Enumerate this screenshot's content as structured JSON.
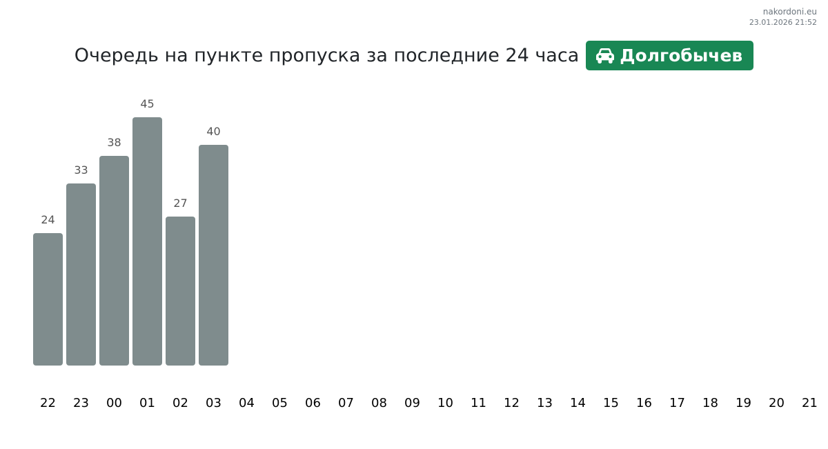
{
  "header": {
    "site": "nakordoni.eu",
    "timestamp": "23.01.2026 21:52",
    "title": "Очередь на пункте пропуска за последние 24 часа",
    "checkpoint": "Долгобычев",
    "badge_icon": "car-icon"
  },
  "colors": {
    "bar": "#7f8c8d",
    "badge": "#198754",
    "value_label": "#555555",
    "tick_label": "#000000"
  },
  "chart_data": {
    "type": "bar",
    "title": "Очередь на пункте пропуска за последние 24 часа",
    "xlabel": "",
    "ylabel": "",
    "categories": [
      "22",
      "23",
      "00",
      "01",
      "02",
      "03",
      "04",
      "05",
      "06",
      "07",
      "08",
      "09",
      "10",
      "11",
      "12",
      "13",
      "14",
      "15",
      "16",
      "17",
      "18",
      "19",
      "20",
      "21"
    ],
    "values": [
      24,
      33,
      38,
      45,
      27,
      40,
      null,
      null,
      null,
      null,
      null,
      null,
      null,
      null,
      null,
      null,
      null,
      null,
      null,
      null,
      null,
      null,
      null,
      null
    ],
    "ylim": [
      0,
      45
    ],
    "grid": false,
    "legend": "none",
    "data_labels": true
  }
}
